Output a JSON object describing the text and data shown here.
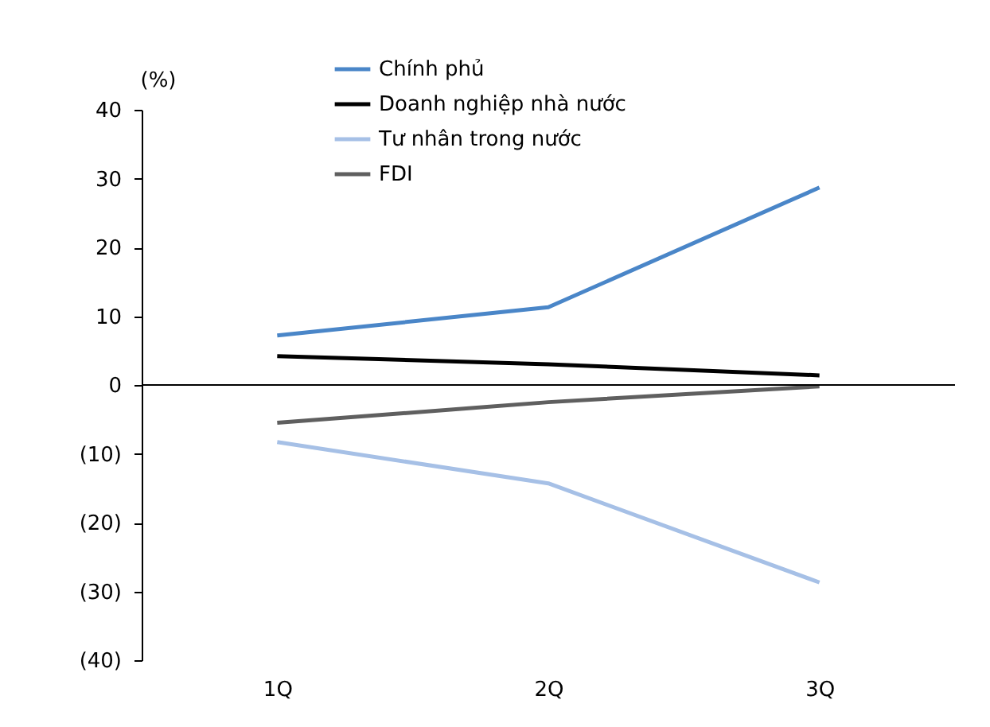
{
  "chart_data": {
    "type": "line",
    "ylabel": "(%)",
    "categories": [
      "1Q",
      "2Q",
      "3Q"
    ],
    "series": [
      {
        "name": "Chính phủ",
        "color": "#4a86c8",
        "values": [
          7.2,
          11.3,
          28.7
        ]
      },
      {
        "name": "Doanh nghiệp nhà nước",
        "color": "#000000",
        "values": [
          4.2,
          3.0,
          1.4
        ]
      },
      {
        "name": "Tư nhân trong nước",
        "color": "#a6c0e6",
        "values": [
          -8.3,
          -14.3,
          -28.7
        ]
      },
      {
        "name": "FDI",
        "color": "#5f5f5f",
        "values": [
          -5.5,
          -2.5,
          -0.2
        ]
      }
    ],
    "ylim": [
      -40,
      40
    ],
    "yticks": [
      {
        "value": -40,
        "label": "(40)"
      },
      {
        "value": -30,
        "label": "(30)"
      },
      {
        "value": -20,
        "label": "(20)"
      },
      {
        "value": -10,
        "label": "(10)"
      },
      0,
      10,
      20,
      30,
      40
    ],
    "ref_lines": [
      {
        "axis": "y",
        "value": 0,
        "color": "#000000",
        "line_style": "solid"
      }
    ],
    "grid": false,
    "legend": "top",
    "marker": "none",
    "line_style": "solid"
  }
}
